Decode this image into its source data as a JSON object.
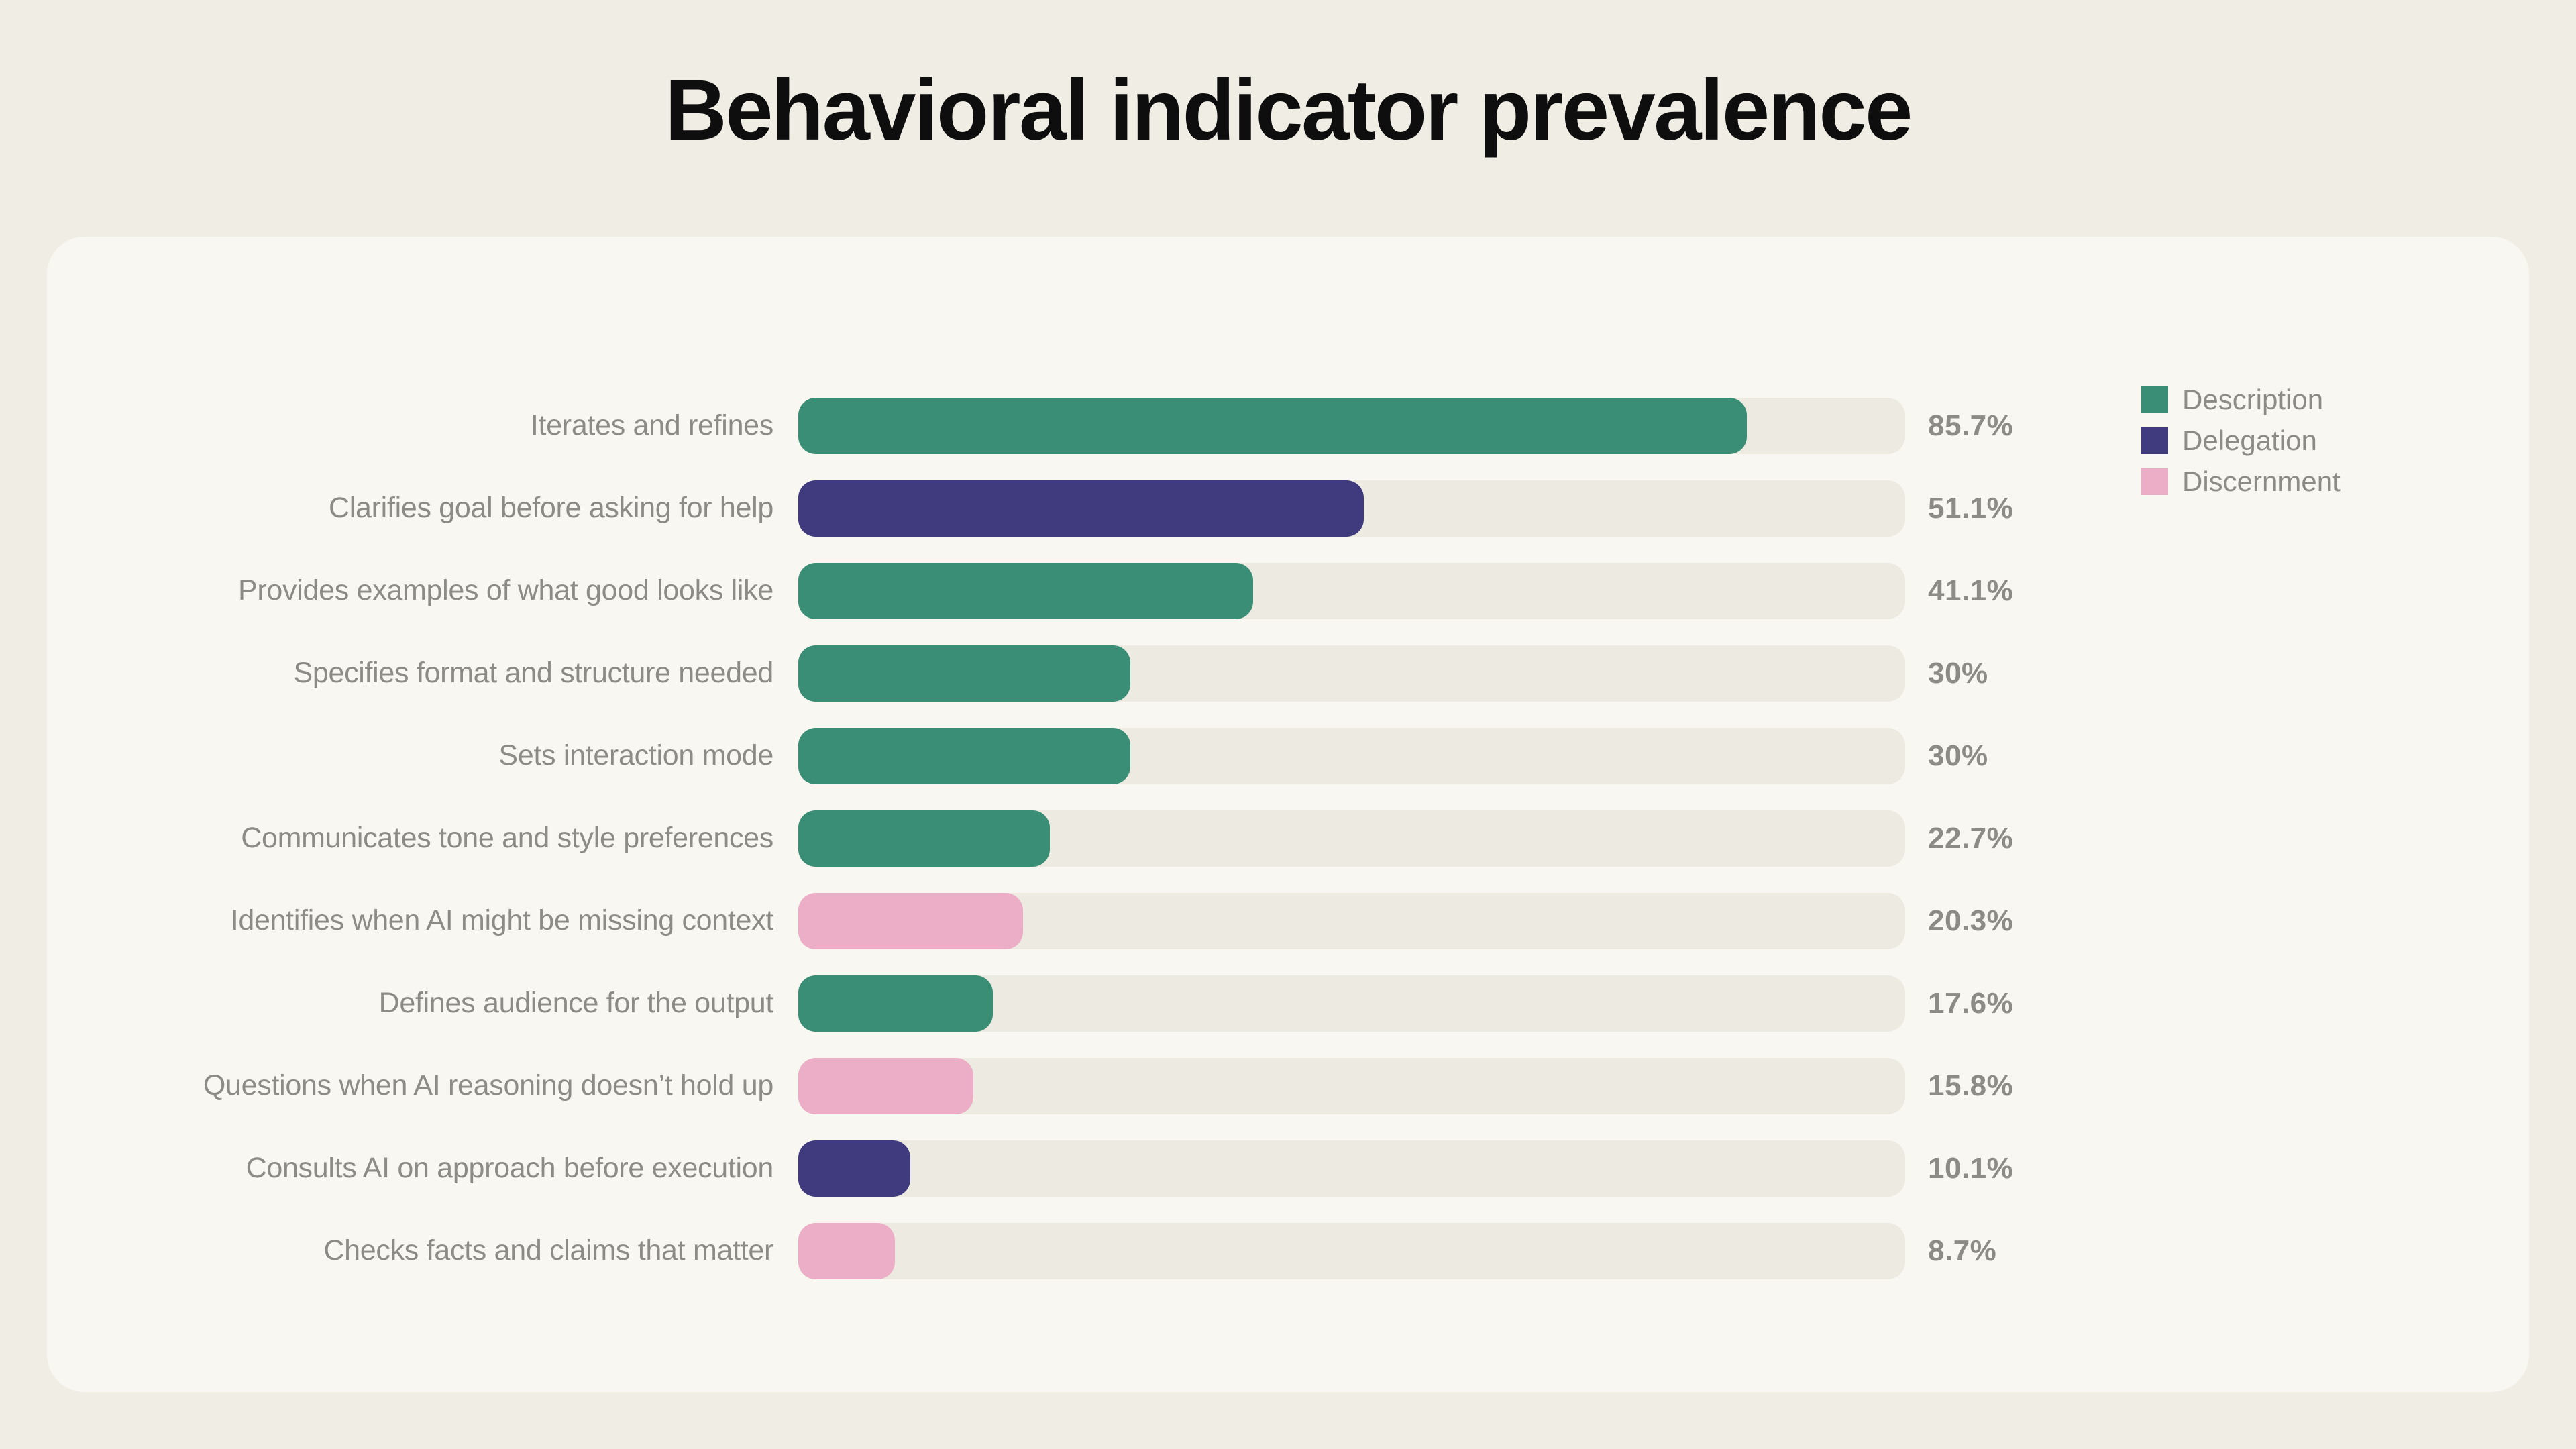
{
  "title": "Behavioral indicator prevalence",
  "colors": {
    "page_background": "#f0ede4",
    "card_background": "#f9f7f1",
    "track_background": "#edeae1",
    "muted_text": "#8c8b85",
    "title_text": "#0e0e0e"
  },
  "category_colors": {
    "Description": "#3a8e75",
    "Delegation": "#3f3b7e",
    "Discernment": "#ecaec6"
  },
  "chart_data": {
    "type": "bar",
    "orientation": "horizontal",
    "title": "Behavioral indicator prevalence",
    "xlabel": "",
    "ylabel": "",
    "xlim": [
      0,
      100
    ],
    "unit": "%",
    "grid": false,
    "legend_position": "top-right",
    "legend": [
      "Description",
      "Delegation",
      "Discernment"
    ],
    "rows": [
      {
        "label": "Iterates and refines",
        "value": 85.7,
        "display": "85.7%",
        "category": "Description"
      },
      {
        "label": "Clarifies goal before asking for help",
        "value": 51.1,
        "display": "51.1%",
        "category": "Delegation"
      },
      {
        "label": "Provides examples of what good looks like",
        "value": 41.1,
        "display": "41.1%",
        "category": "Description"
      },
      {
        "label": "Specifies format and structure needed",
        "value": 30,
        "display": "30%",
        "category": "Description"
      },
      {
        "label": "Sets interaction mode",
        "value": 30,
        "display": "30%",
        "category": "Description"
      },
      {
        "label": "Communicates tone and style preferences",
        "value": 22.7,
        "display": "22.7%",
        "category": "Description"
      },
      {
        "label": "Identifies when AI might be missing context",
        "value": 20.3,
        "display": "20.3%",
        "category": "Discernment"
      },
      {
        "label": "Defines audience for the output",
        "value": 17.6,
        "display": "17.6%",
        "category": "Description"
      },
      {
        "label": "Questions when AI reasoning doesn’t hold up",
        "value": 15.8,
        "display": "15.8%",
        "category": "Discernment"
      },
      {
        "label": "Consults AI on approach before execution",
        "value": 10.1,
        "display": "10.1%",
        "category": "Delegation"
      },
      {
        "label": "Checks facts and claims that matter",
        "value": 8.7,
        "display": "8.7%",
        "category": "Discernment"
      }
    ]
  }
}
